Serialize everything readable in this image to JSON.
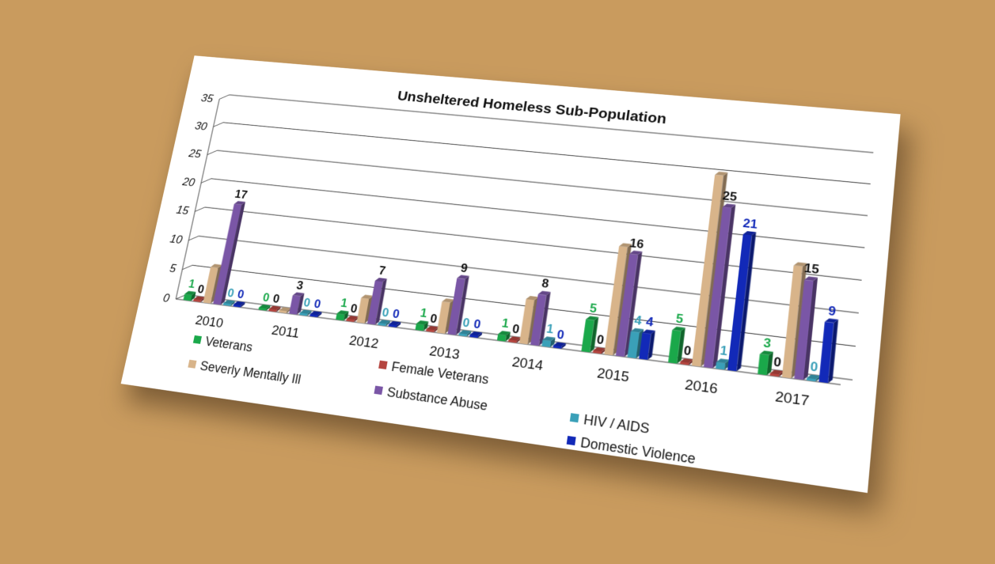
{
  "chart_data": {
    "type": "bar",
    "title": "Unsheltered Homeless Sub-Population",
    "categories": [
      "2010",
      "2011",
      "2012",
      "2013",
      "2014",
      "2015",
      "2016",
      "2017"
    ],
    "ylim": [
      0,
      35
    ],
    "yticks": [
      0,
      5,
      10,
      15,
      20,
      25,
      30,
      35
    ],
    "grid": true,
    "legend_position": "bottom-left",
    "series": [
      {
        "name": "Veterans",
        "color": "#1aa84a",
        "label_color": "#1aa84a",
        "values": [
          1,
          0,
          1,
          1,
          1,
          5,
          5,
          3
        ],
        "labels": [
          "1",
          "0",
          "1",
          "1",
          "1",
          "5",
          "5",
          "3"
        ]
      },
      {
        "name": "Female Veterans",
        "color": "#b5453f",
        "label_color": "#111111",
        "values": [
          0,
          0,
          0,
          0,
          0,
          0,
          0,
          0
        ],
        "labels": [
          "0",
          "0",
          "0",
          "0",
          "0",
          "0",
          "0",
          "0"
        ]
      },
      {
        "name": "Severly Mentally Ill",
        "color": "#d8b48a",
        "label_color": "#111111",
        "values": [
          6,
          0,
          4,
          5,
          7,
          17,
          30,
          17
        ],
        "labels": [
          "",
          "",
          "",
          "",
          "",
          "",
          "",
          ""
        ]
      },
      {
        "name": "Substance Abuse",
        "color": "#7a56a6",
        "label_color": "#111111",
        "values": [
          17,
          3,
          7,
          9,
          8,
          16,
          25,
          15
        ],
        "labels": [
          "17",
          "3",
          "7",
          "9",
          "8",
          "16",
          "25",
          "15"
        ]
      },
      {
        "name": "HIV / AIDS",
        "color": "#3aa0b8",
        "label_color": "#3aa0b8",
        "values": [
          0,
          0,
          0,
          0,
          1,
          4,
          1,
          0
        ],
        "labels": [
          "0",
          "0",
          "0",
          "0",
          "1",
          "4",
          "1",
          "0"
        ]
      },
      {
        "name": "Domestic Violence",
        "color": "#1229b8",
        "label_color": "#1229b8",
        "values": [
          0,
          0,
          0,
          0,
          0,
          4,
          21,
          9
        ],
        "labels": [
          "0",
          "0",
          "0",
          "0",
          "0",
          "4",
          "21",
          "9"
        ]
      }
    ]
  }
}
